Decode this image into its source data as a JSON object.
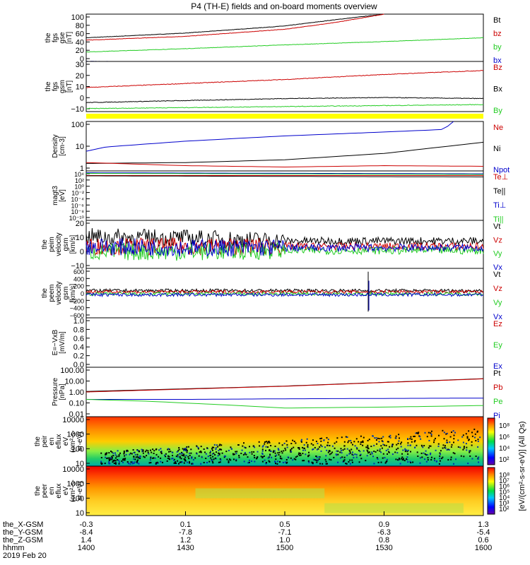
{
  "title": "P4 (TH-E) fields and on-board moments overview",
  "colors": {
    "black": "#000000",
    "red": "#cc0000",
    "green": "#22cc22",
    "blue": "#0000cc",
    "yellow": "#ffff00"
  },
  "chart_data": [
    {
      "type": "line",
      "ylabel_lines": [
        "the",
        "fgs",
        "gse",
        "[nT]"
      ],
      "y_ticks": [
        "100",
        "80",
        "60",
        "40",
        "20",
        "0"
      ],
      "ylim": [
        0,
        100
      ],
      "legend": [
        {
          "name": "Bt",
          "color": "black"
        },
        {
          "name": "bz",
          "color": "red"
        },
        {
          "name": "by",
          "color": "green"
        },
        {
          "name": "bx",
          "color": "blue"
        }
      ],
      "series": [
        {
          "name": "Bt",
          "color": "black",
          "x": [
            14.0,
            14.5,
            15.0,
            15.25,
            15.5
          ],
          "y": [
            50,
            60,
            75,
            88,
            100
          ]
        },
        {
          "name": "bz",
          "color": "red",
          "x": [
            14.0,
            14.5,
            15.0,
            15.25,
            15.5
          ],
          "y": [
            45,
            53,
            68,
            82,
            100
          ]
        },
        {
          "name": "by",
          "color": "green",
          "x": [
            14.0,
            14.5,
            15.0,
            15.5,
            16.0
          ],
          "y": [
            20,
            27,
            35,
            42,
            50
          ]
        },
        {
          "name": "bx",
          "color": "blue",
          "x": [
            14.0,
            14.5,
            15.0,
            15.5,
            16.0
          ],
          "y": [
            0,
            -1,
            -2,
            -4,
            -8
          ]
        }
      ]
    },
    {
      "type": "line",
      "ylabel_lines": [
        "the",
        "fgs",
        "gsm",
        "[nT]"
      ],
      "y_ticks": [
        "30",
        "20",
        "10",
        "0",
        "−10"
      ],
      "ylim": [
        -15,
        35
      ],
      "legend": [
        {
          "name": "Bz",
          "color": "red"
        },
        {
          "name": "Bx",
          "color": "black"
        },
        {
          "name": "By",
          "color": "green"
        }
      ],
      "series": [
        {
          "name": "Bz",
          "color": "red",
          "x": [
            14.0,
            14.5,
            15.0,
            15.5,
            16.0
          ],
          "y": [
            9,
            13,
            17,
            22,
            26
          ]
        },
        {
          "name": "Bx",
          "color": "black",
          "x": [
            14.0,
            14.5,
            15.0,
            15.5,
            16.0
          ],
          "y": [
            -6,
            -4,
            -2,
            -1,
            -2
          ]
        },
        {
          "name": "By",
          "color": "green",
          "x": [
            14.0,
            14.5,
            15.0,
            15.5,
            16.0
          ],
          "y": [
            -12,
            -11,
            -10,
            -9,
            -8
          ]
        }
      ]
    },
    {
      "type": "line",
      "ylabel_lines": [
        "Density",
        "[cm-3]"
      ],
      "scale": "log",
      "y_ticks": [
        "100",
        "10",
        "1"
      ],
      "ylim": [
        0.3,
        200
      ],
      "legend": [
        {
          "name": "Ne",
          "color": "red"
        },
        {
          "name": "Ni",
          "color": "black"
        },
        {
          "name": "Npot",
          "color": "blue"
        }
      ],
      "series": [
        {
          "name": "Npot",
          "color": "blue",
          "x": [
            14.0,
            14.1,
            14.5,
            15.0,
            15.5,
            15.8,
            15.85
          ],
          "y": [
            4,
            7,
            15,
            30,
            50,
            70,
            200
          ]
        },
        {
          "name": "Ni",
          "color": "black",
          "x": [
            14.0,
            14.5,
            15.0,
            15.5,
            16.0
          ],
          "y": [
            0.8,
            0.9,
            1.3,
            3,
            13
          ]
        },
        {
          "name": "Ne",
          "color": "red",
          "x": [
            14.0,
            14.5,
            15.0,
            15.5,
            16.0
          ],
          "y": [
            0.9,
            0.6,
            0.5,
            0.6,
            0.55
          ]
        }
      ]
    },
    {
      "type": "line",
      "ylabel_lines": [
        "magt3",
        "[eV]"
      ],
      "scale": "log",
      "y_ticks": [
        "10⁴",
        "10²",
        "10⁰",
        "10⁻²",
        "10⁻⁴",
        "10⁻⁶",
        "10⁻⁸",
        "10⁻¹⁰"
      ],
      "ylim": [
        1e-10,
        10000.0
      ],
      "legend": [
        {
          "name": "Te⊥",
          "color": "red"
        },
        {
          "name": "Te||",
          "color": "black"
        },
        {
          "name": "Ti⊥",
          "color": "blue"
        },
        {
          "name": "Ti||",
          "color": "green"
        }
      ],
      "series": [
        {
          "name": "Te⊥",
          "color": "red",
          "x": [
            14.0,
            16.0
          ],
          "y": [
            500,
            500
          ]
        },
        {
          "name": "Te||",
          "color": "black",
          "x": [
            14.0,
            16.0
          ],
          "y": [
            400,
            200
          ]
        },
        {
          "name": "Ti⊥",
          "color": "blue",
          "x": [
            14.0,
            16.0
          ],
          "y": [
            3000,
            1500
          ]
        },
        {
          "name": "Ti||",
          "color": "green",
          "x": [
            14.0,
            16.0
          ],
          "y": [
            2000,
            1000
          ]
        }
      ]
    },
    {
      "type": "line",
      "ylabel_lines": [
        "the",
        "peim",
        "velocity",
        "gsm",
        "[km/s]"
      ],
      "y_ticks": [
        "20",
        "10",
        "0",
        "−10"
      ],
      "ylim": [
        -15,
        20
      ],
      "legend": [
        {
          "name": "Vt",
          "color": "black"
        },
        {
          "name": "Vz",
          "color": "red"
        },
        {
          "name": "Vy",
          "color": "green"
        },
        {
          "name": "Vx",
          "color": "blue"
        }
      ],
      "series": [
        {
          "name": "Vt",
          "color": "black",
          "x": [
            14.0,
            14.5,
            15.0,
            16.0
          ],
          "y": [
            8,
            7,
            5,
            5
          ]
        },
        {
          "name": "Vz",
          "color": "red",
          "x": [
            14.0,
            14.5,
            15.0,
            16.0
          ],
          "y": [
            1,
            1,
            1,
            1
          ]
        },
        {
          "name": "Vy",
          "color": "green",
          "x": [
            14.0,
            14.5,
            15.0,
            16.0
          ],
          "y": [
            -3,
            -3,
            -2,
            -2
          ]
        },
        {
          "name": "Vx",
          "color": "blue",
          "x": [
            14.0,
            14.5,
            15.0,
            16.0
          ],
          "y": [
            1,
            0,
            0,
            0
          ]
        }
      ]
    },
    {
      "type": "line",
      "ylabel_lines": [
        "the",
        "peem",
        "velocity",
        "gsm",
        "[km/s]"
      ],
      "y_ticks": [
        "600",
        "400",
        "200",
        "0",
        "−200",
        "−400",
        "−600"
      ],
      "ylim": [
        -600,
        600
      ],
      "legend": [
        {
          "name": "Vt",
          "color": "black"
        },
        {
          "name": "Vz",
          "color": "red"
        },
        {
          "name": "Vy",
          "color": "green"
        },
        {
          "name": "Vx",
          "color": "blue"
        }
      ],
      "series": [
        {
          "name": "Vt",
          "color": "black",
          "x": [
            14.0,
            16.0
          ],
          "y": [
            60,
            60
          ]
        },
        {
          "name": "Vz",
          "color": "red",
          "x": [
            14.0,
            16.0
          ],
          "y": [
            30,
            30
          ]
        },
        {
          "name": "Vy",
          "color": "green",
          "x": [
            14.0,
            16.0
          ],
          "y": [
            -20,
            -20
          ]
        },
        {
          "name": "Vx",
          "color": "blue",
          "x": [
            14.0,
            16.0
          ],
          "y": [
            -40,
            -40
          ]
        }
      ]
    },
    {
      "type": "line",
      "ylabel_lines": [
        "E=−VxB",
        "[mV/m]"
      ],
      "y_ticks": [
        "1.0",
        "0.8",
        "0.6",
        "0.4",
        "0.2",
        "0.0"
      ],
      "ylim": [
        0,
        1
      ],
      "legend": [
        {
          "name": "Ez",
          "color": "red"
        },
        {
          "name": "Ey",
          "color": "green"
        },
        {
          "name": "Ex",
          "color": "blue"
        }
      ],
      "series": []
    },
    {
      "type": "line",
      "ylabel_lines": [
        "Pressure",
        "[nPa]"
      ],
      "scale": "log",
      "y_ticks": [
        "100.00",
        "10.00",
        "1.00",
        "0.10",
        "0.01"
      ],
      "ylim": [
        0.01,
        100
      ],
      "legend": [
        {
          "name": "Pt",
          "color": "black"
        },
        {
          "name": "Pb",
          "color": "red"
        },
        {
          "name": "Pe",
          "color": "green"
        },
        {
          "name": "Pi",
          "color": "blue"
        }
      ],
      "series": [
        {
          "name": "Pt",
          "color": "black",
          "x": [
            14.0,
            14.5,
            15.0,
            15.5,
            16.0
          ],
          "y": [
            1.1,
            1.8,
            3,
            6,
            12
          ]
        },
        {
          "name": "Pb",
          "color": "red",
          "x": [
            14.0,
            14.5,
            15.0,
            15.5,
            16.0
          ],
          "y": [
            1.0,
            1.7,
            2.9,
            5.8,
            11.5
          ]
        },
        {
          "name": "Pi",
          "color": "blue",
          "x": [
            14.0,
            14.5,
            15.0,
            15.5,
            16.0
          ],
          "y": [
            0.25,
            0.25,
            0.28,
            0.3,
            0.32
          ]
        },
        {
          "name": "Pe",
          "color": "green",
          "x": [
            14.0,
            14.3,
            14.7,
            15.0,
            15.5,
            16.0
          ],
          "y": [
            0.25,
            0.18,
            0.09,
            0.05,
            0.06,
            0.08
          ]
        }
      ]
    },
    {
      "type": "heatmap",
      "ylabel_lines": [
        "the",
        "peir",
        "en",
        "eflux",
        "eV",
        "(cm²-s-",
        "sr-eV)"
      ],
      "y_ticks": [
        "10000",
        "1000",
        "100",
        "10"
      ],
      "ylim": [
        5,
        20000
      ]
    },
    {
      "type": "heatmap",
      "ylabel_lines": [
        "the",
        "peer",
        "en",
        "eflux",
        "eV",
        "(cm²-s-",
        "sr-eV)"
      ],
      "y_ticks": [
        "10000",
        "1000",
        "100",
        "10"
      ],
      "ylim": [
        5,
        20000
      ]
    }
  ],
  "colorbar_ticks_a": [
    "10⁸",
    "10⁶",
    "10⁴",
    "10²"
  ],
  "colorbar_ticks_b": [
    "10⁸",
    "10⁷",
    "10⁶",
    "10⁵",
    "10⁴",
    "10³",
    "10²"
  ],
  "colorbar_label": "[eV/(cm²-s-sr-eV)] (All Qs)",
  "x_axis": {
    "tick_positions": [
      14.0,
      14.5,
      15.0,
      15.5,
      16.0
    ],
    "row_labels": [
      "the_X-GSM",
      "the_Y-GSM",
      "the_Z-GSM",
      "hhmm",
      "2019 Feb 20"
    ],
    "x_gsm": [
      "-0.3",
      "0.1",
      "0.5",
      "0.9",
      "1.3"
    ],
    "y_gsm": [
      "-8.4",
      "-7.8",
      "-7.1",
      "-6.3",
      "-5.4"
    ],
    "z_gsm": [
      "1.4",
      "1.2",
      "1.0",
      "0.8",
      "0.6"
    ],
    "hhmm": [
      "1400",
      "1430",
      "1500",
      "1530",
      "1600"
    ]
  }
}
